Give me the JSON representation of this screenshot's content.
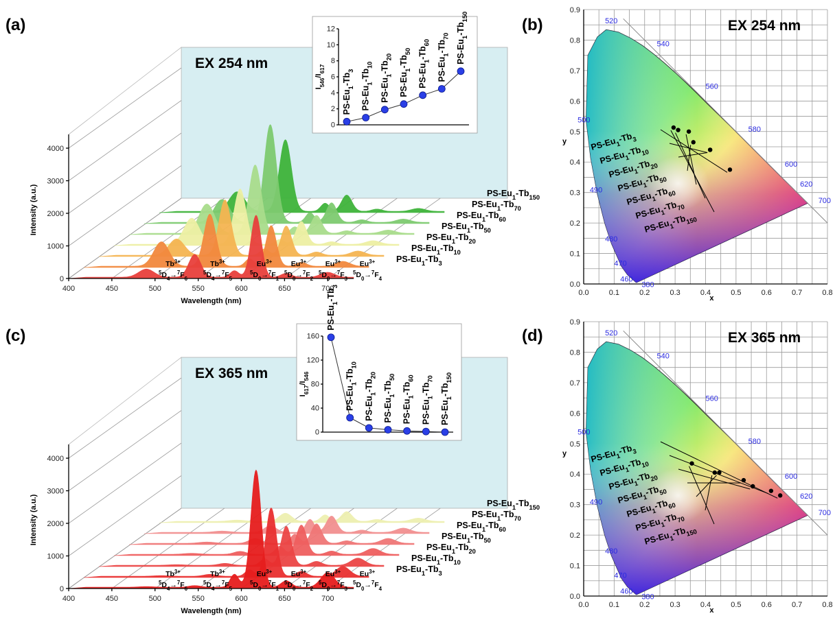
{
  "panels": {
    "a": {
      "label": "(a)",
      "ex": "EX 254 nm"
    },
    "b": {
      "label": "(b)",
      "ex": "EX 254 nm"
    },
    "c": {
      "label": "(c)",
      "ex": "EX 365 nm"
    },
    "d": {
      "label": "(d)",
      "ex": "EX 365 nm"
    }
  },
  "series_names": [
    "PS-Eu1-Tb3",
    "PS-Eu1-Tb10",
    "PS-Eu1-Tb20",
    "PS-Eu1-Tb50",
    "PS-Eu1-Tb60",
    "PS-Eu1-Tb70",
    "PS-Eu1-Tb150"
  ],
  "transitions": [
    {
      "ion": "Tb3+",
      "text": "5D4→7F6"
    },
    {
      "ion": "Tb3+",
      "text": "5D4→7F5"
    },
    {
      "ion": "Eu3+",
      "text": "5D0→7F1"
    },
    {
      "ion": "Eu3+",
      "text": "5D0→7F2"
    },
    {
      "ion": "Eu3+",
      "text": "5D0→7F3"
    },
    {
      "ion": "Eu3+",
      "text": "5D0→7F4"
    }
  ],
  "chart_data": [
    {
      "id": "a",
      "type": "area",
      "xlabel": "Wavelength (nm)",
      "ylabel": "Intensity (a.u.)",
      "xlim": [
        400,
        730
      ],
      "ylim": [
        0,
        4000
      ],
      "x_ticks": [
        400,
        450,
        500,
        550,
        600,
        650,
        700
      ],
      "y_ticks": [
        0,
        1000,
        2000,
        3000,
        4000
      ],
      "peak_positions_nm": [
        490,
        546,
        592,
        617,
        652,
        700
      ],
      "series": [
        {
          "name": "PS-Eu1-Tb3",
          "color": "#e8403c",
          "peaks": [
            250,
            700,
            200,
            1900,
            120,
            150
          ]
        },
        {
          "name": "PS-Eu1-Tb10",
          "color": "#f2893e",
          "peaks": [
            750,
            1600,
            230,
            1250,
            120,
            150
          ]
        },
        {
          "name": "PS-Eu1-Tb20",
          "color": "#f5b552",
          "peaks": [
            500,
            1700,
            200,
            900,
            100,
            130
          ]
        },
        {
          "name": "PS-Eu1-Tb50",
          "color": "#eef0a4",
          "peaks": [
            800,
            1700,
            150,
            700,
            80,
            110
          ]
        },
        {
          "name": "PS-Eu1-Tb60",
          "color": "#a9dd8c",
          "peaks": [
            900,
            2100,
            200,
            550,
            80,
            100
          ]
        },
        {
          "name": "PS-Eu1-Tb70",
          "color": "#7ecb70",
          "peaks": [
            700,
            3000,
            300,
            600,
            80,
            100
          ]
        },
        {
          "name": "PS-Eu1-Tb150",
          "color": "#3fb43a",
          "peaks": [
            600,
            2200,
            250,
            500,
            70,
            90
          ]
        }
      ]
    },
    {
      "id": "a-inset",
      "type": "line",
      "ylabel": "I546/I617",
      "ylim": [
        0,
        12
      ],
      "y_ticks": [
        0,
        2,
        4,
        6,
        8,
        10,
        12
      ],
      "categories": [
        "PS-Eu1-Tb3",
        "PS-Eu1-Tb10",
        "PS-Eu1-Tb20",
        "PS-Eu1-Tb50",
        "PS-Eu1-Tb60",
        "PS-Eu1-Tb70",
        "PS-Eu1-Tb150"
      ],
      "values": [
        0.4,
        0.9,
        1.9,
        2.6,
        3.7,
        4.5,
        6.7
      ]
    },
    {
      "id": "b",
      "type": "scatter",
      "xlabel": "x",
      "ylabel": "y",
      "xlim": [
        0,
        0.8
      ],
      "ylim": [
        0,
        0.9
      ],
      "x_ticks": [
        0.0,
        0.1,
        0.2,
        0.3,
        0.4,
        0.5,
        0.6,
        0.7,
        0.8
      ],
      "y_ticks": [
        0.0,
        0.1,
        0.2,
        0.3,
        0.4,
        0.5,
        0.6,
        0.7,
        0.8,
        0.9
      ],
      "wavelength_labels": [
        "380",
        "460",
        "470",
        "480",
        "490",
        "500",
        "520",
        "540",
        "560",
        "580",
        "600",
        "620",
        "700"
      ],
      "points": [
        {
          "name": "PS-Eu1-Tb150",
          "x": 0.295,
          "y": 0.513
        },
        {
          "name": "PS-Eu1-Tb70",
          "x": 0.31,
          "y": 0.505
        },
        {
          "name": "PS-Eu1-Tb60",
          "x": 0.345,
          "y": 0.5
        },
        {
          "name": "PS-Eu1-Tb50",
          "x": 0.36,
          "y": 0.465
        },
        {
          "name": "PS-Eu1-Tb20",
          "x": 0.415,
          "y": 0.44
        },
        {
          "name": "PS-Eu1-Tb10",
          "x": 0.415,
          "y": 0.44
        },
        {
          "name": "PS-Eu1-Tb3",
          "x": 0.48,
          "y": 0.375
        }
      ]
    },
    {
      "id": "c",
      "type": "area",
      "xlabel": "Wavelength (nm)",
      "ylabel": "Intensity (a.u.)",
      "xlim": [
        400,
        730
      ],
      "ylim": [
        0,
        4000
      ],
      "x_ticks": [
        400,
        450,
        500,
        550,
        600,
        650,
        700
      ],
      "y_ticks": [
        0,
        1000,
        2000,
        3000,
        4000
      ],
      "peak_positions_nm": [
        490,
        546,
        592,
        617,
        652,
        700
      ],
      "series": [
        {
          "name": "PS-Eu1-Tb3",
          "color": "#e61d1d",
          "peaks": [
            20,
            50,
            400,
            3600,
            200,
            450
          ]
        },
        {
          "name": "PS-Eu1-Tb10",
          "color": "#e93030",
          "peaks": [
            20,
            60,
            200,
            2100,
            150,
            300
          ]
        },
        {
          "name": "PS-Eu1-Tb20",
          "color": "#ec4646",
          "peaks": [
            20,
            60,
            200,
            1200,
            120,
            220
          ]
        },
        {
          "name": "PS-Eu1-Tb50",
          "color": "#ef5f5f",
          "peaks": [
            30,
            90,
            250,
            900,
            100,
            180
          ]
        },
        {
          "name": "PS-Eu1-Tb60",
          "color": "#f07777",
          "peaks": [
            40,
            150,
            280,
            600,
            80,
            150
          ]
        },
        {
          "name": "PS-Eu1-Tb70",
          "color": "#f29090",
          "peaks": [
            40,
            200,
            400,
            500,
            70,
            130
          ]
        },
        {
          "name": "PS-Eu1-Tb150",
          "color": "#eef0b0",
          "peaks": [
            40,
            250,
            200,
            300,
            60,
            100
          ]
        }
      ]
    },
    {
      "id": "c-inset",
      "type": "line",
      "ylabel": "I617/I546",
      "ylim": [
        0,
        160
      ],
      "y_ticks": [
        0,
        40,
        80,
        120,
        160
      ],
      "categories": [
        "PS-Eu1-Tb3",
        "PS-Eu1-Tb10",
        "PS-Eu1-Tb20",
        "PS-Eu1-Tb50",
        "PS-Eu1-Tb60",
        "PS-Eu1-Tb70",
        "PS-Eu1-Tb150"
      ],
      "values": [
        158,
        24,
        7,
        4,
        2,
        1,
        0
      ]
    },
    {
      "id": "d",
      "type": "scatter",
      "xlabel": "x",
      "ylabel": "y",
      "xlim": [
        0,
        0.8
      ],
      "ylim": [
        0,
        0.9
      ],
      "x_ticks": [
        0.0,
        0.1,
        0.2,
        0.3,
        0.4,
        0.5,
        0.6,
        0.7,
        0.8
      ],
      "y_ticks": [
        0.0,
        0.1,
        0.2,
        0.3,
        0.4,
        0.5,
        0.6,
        0.7,
        0.8,
        0.9
      ],
      "wavelength_labels": [
        "380",
        "460",
        "470",
        "480",
        "490",
        "500",
        "520",
        "540",
        "560",
        "580",
        "600",
        "620",
        "700"
      ],
      "points": [
        {
          "name": "PS-Eu1-Tb150",
          "x": 0.355,
          "y": 0.435
        },
        {
          "name": "PS-Eu1-Tb70",
          "x": 0.43,
          "y": 0.405
        },
        {
          "name": "PS-Eu1-Tb60",
          "x": 0.445,
          "y": 0.405
        },
        {
          "name": "PS-Eu1-Tb50",
          "x": 0.525,
          "y": 0.38
        },
        {
          "name": "PS-Eu1-Tb20",
          "x": 0.555,
          "y": 0.36
        },
        {
          "name": "PS-Eu1-Tb10",
          "x": 0.615,
          "y": 0.345
        },
        {
          "name": "PS-Eu1-Tb3",
          "x": 0.645,
          "y": 0.33
        }
      ]
    }
  ]
}
